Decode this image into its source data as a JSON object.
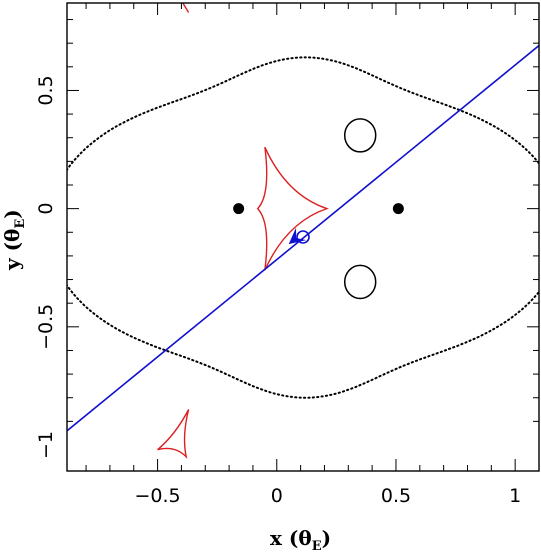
{
  "chart_data": {
    "type": "scatter",
    "xlabel": "x (θ",
    "xlabel_sub": "E",
    "xlabel_tail": ")",
    "ylabel": "y (θ",
    "ylabel_sub": "E",
    "ylabel_tail": ")",
    "xlim": [
      -0.88,
      1.1
    ],
    "ylim": [
      -1.11,
      0.87
    ],
    "xticks": [
      {
        "value": -0.5,
        "label": "−0.5"
      },
      {
        "value": 0,
        "label": "0"
      },
      {
        "value": 0.5,
        "label": "0.5"
      },
      {
        "value": 1,
        "label": "1"
      }
    ],
    "yticks": [
      {
        "value": -1,
        "label": "−1"
      },
      {
        "value": -0.5,
        "label": "−0.5"
      },
      {
        "value": 0,
        "label": "0"
      },
      {
        "value": 0.5,
        "label": "0.5"
      }
    ],
    "lens_masses": [
      {
        "x": -0.16,
        "y": 0.0
      },
      {
        "x": 0.51,
        "y": 0.0
      }
    ],
    "source_trajectory": {
      "x": [
        -0.88,
        1.1
      ],
      "y": [
        -0.94,
        0.69
      ],
      "source_position": {
        "x": 0.11,
        "y": -0.12
      },
      "arrow_tip": {
        "x": 0.05,
        "y": -0.15
      }
    },
    "critical_curves": {
      "outer": {
        "center": [
          0.12,
          -0.08
        ],
        "description": "dotted outer curve"
      },
      "small_loops": [
        {
          "cx": 0.35,
          "cy": 0.31,
          "rx": 0.065,
          "ry": 0.07
        },
        {
          "cx": 0.35,
          "cy": -0.31,
          "rx": 0.065,
          "ry": 0.07
        }
      ]
    },
    "caustics": [
      {
        "name": "central",
        "points": [
          [
            -0.05,
            0.26
          ],
          [
            0.21,
            0.0
          ],
          [
            -0.05,
            -0.26
          ],
          [
            -0.08,
            0.0
          ]
        ]
      },
      {
        "name": "lower-left",
        "points": [
          [
            -0.37,
            -0.85
          ],
          [
            -0.38,
            -1.05
          ],
          [
            -0.5,
            -1.02
          ]
        ]
      }
    ],
    "colors": {
      "caustic": "#dd1f1f",
      "trajectory": "#1010d0",
      "critical": "#000000",
      "mass": "#000000"
    }
  }
}
